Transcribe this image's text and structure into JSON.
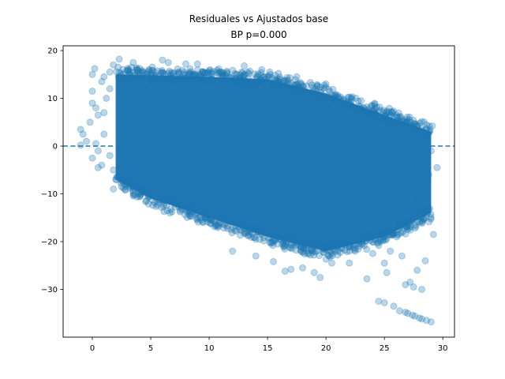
{
  "chart_data": {
    "type": "scatter",
    "title_line1": "Residuales vs Ajustados base",
    "title_line2": "BP p=0.000",
    "xlabel": "",
    "ylabel": "",
    "xlim": [
      -2.5,
      31.0
    ],
    "ylim": [
      -40.0,
      21.0
    ],
    "x_ticks": [
      0,
      5,
      10,
      15,
      20,
      25,
      30
    ],
    "x_tick_labels": [
      "0",
      "5",
      "10",
      "15",
      "20",
      "25",
      "30"
    ],
    "y_ticks": [
      20,
      10,
      0,
      -10,
      -20,
      -30
    ],
    "y_tick_labels": [
      "20",
      "10",
      "0",
      "−10",
      "−20",
      "−30"
    ],
    "reference_line": {
      "y": 0,
      "style": "dashed"
    },
    "point_color": "#1f77b4",
    "point_alpha": 0.3,
    "band": {
      "description": "dense cloud of residuals",
      "x_range": [
        2.0,
        29.0
      ],
      "upper": [
        [
          2,
          16
        ],
        [
          10,
          15.5
        ],
        [
          15,
          15
        ],
        [
          20,
          12
        ],
        [
          25,
          7.5
        ],
        [
          29,
          4
        ]
      ],
      "lower": [
        [
          2,
          -8
        ],
        [
          5,
          -12
        ],
        [
          10,
          -16
        ],
        [
          15,
          -20
        ],
        [
          20,
          -23
        ],
        [
          25,
          -20
        ],
        [
          29,
          -15
        ]
      ]
    },
    "outliers": [
      [
        -1.0,
        3.5
      ],
      [
        -1.0,
        0.2
      ],
      [
        -0.8,
        2.5
      ],
      [
        -0.5,
        1.0
      ],
      [
        -0.2,
        5.0
      ],
      [
        0.0,
        15.0
      ],
      [
        0.2,
        16.2
      ],
      [
        0.0,
        11.5
      ],
      [
        0.0,
        9.0
      ],
      [
        0.3,
        0.5
      ],
      [
        0.5,
        -1.0
      ],
      [
        0.0,
        -2.5
      ],
      [
        0.5,
        -4.5
      ],
      [
        0.8,
        -4.0
      ],
      [
        0.3,
        8.0
      ],
      [
        0.5,
        6.5
      ],
      [
        1.0,
        14.5
      ],
      [
        0.8,
        13.5
      ],
      [
        1.5,
        12.0
      ],
      [
        1.2,
        10.0
      ],
      [
        1.0,
        7.0
      ],
      [
        1.5,
        -2.0
      ],
      [
        1.8,
        -5.0
      ],
      [
        1.0,
        2.5
      ],
      [
        1.8,
        -9.0
      ],
      [
        2.5,
        -8.5
      ],
      [
        1.5,
        15.5
      ],
      [
        1.8,
        17.0
      ],
      [
        2.3,
        18.2
      ],
      [
        3.5,
        17.5
      ],
      [
        6.0,
        18.0
      ],
      [
        6.5,
        17.5
      ],
      [
        8.0,
        17.2
      ],
      [
        9.0,
        17.2
      ],
      [
        13.0,
        16.8
      ],
      [
        14.5,
        16.0
      ],
      [
        17.5,
        14.5
      ],
      [
        20.0,
        13.0
      ],
      [
        23.0,
        9.5
      ],
      [
        19.5,
        -27.5
      ],
      [
        19.0,
        -26.5
      ],
      [
        20.5,
        -24.5
      ],
      [
        22.0,
        -24.5
      ],
      [
        23.5,
        -27.8
      ],
      [
        24.0,
        -22.5
      ],
      [
        24.5,
        -32.5
      ],
      [
        25.0,
        -32.8
      ],
      [
        25.2,
        -26.5
      ],
      [
        25.8,
        -33.5
      ],
      [
        26.3,
        -34.5
      ],
      [
        26.8,
        -34.8
      ],
      [
        27.0,
        -35.0
      ],
      [
        27.4,
        -35.4
      ],
      [
        27.6,
        -35.6
      ],
      [
        28.0,
        -36.0
      ],
      [
        28.2,
        -36.2
      ],
      [
        28.6,
        -36.5
      ],
      [
        29.0,
        -36.8
      ],
      [
        27.5,
        -29.5
      ],
      [
        26.8,
        -29.0
      ],
      [
        28.2,
        -30.0
      ],
      [
        28.5,
        -24.0
      ],
      [
        29.2,
        -18.5
      ],
      [
        29.5,
        -4.5
      ],
      [
        29.0,
        -1.0
      ],
      [
        28.8,
        -6.0
      ],
      [
        28.5,
        -13.0
      ],
      [
        27.8,
        -26.0
      ],
      [
        27.2,
        -28.5
      ],
      [
        26.5,
        -23.0
      ],
      [
        25.5,
        -22.0
      ],
      [
        25.0,
        -24.5
      ],
      [
        24.5,
        -18.5
      ],
      [
        28.0,
        -16.0
      ],
      [
        27.8,
        -11.5
      ],
      [
        29.1,
        4.2
      ],
      [
        22.5,
        -22.0
      ],
      [
        21.0,
        -22.8
      ],
      [
        18.0,
        -25.5
      ],
      [
        17.0,
        -25.8
      ],
      [
        16.5,
        -26.2
      ],
      [
        15.5,
        -24.2
      ],
      [
        14.0,
        -23.0
      ],
      [
        12.0,
        -22.0
      ]
    ]
  }
}
